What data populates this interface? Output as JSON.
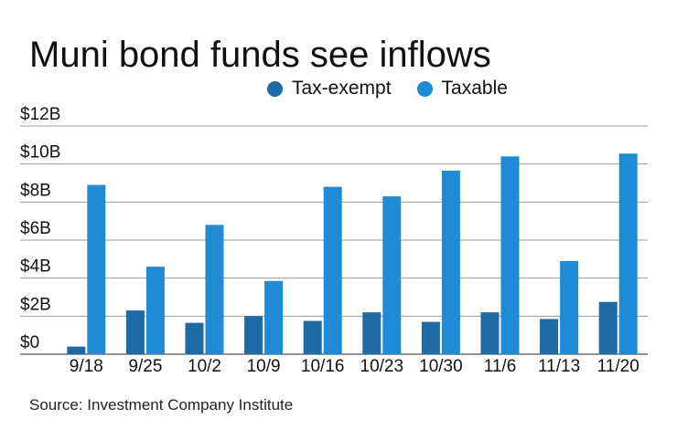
{
  "chart_data": {
    "type": "bar",
    "title": "Muni bond funds see inflows",
    "categories": [
      "9/18",
      "9/25",
      "10/2",
      "10/9",
      "10/16",
      "10/23",
      "10/30",
      "11/6",
      "11/13",
      "11/20"
    ],
    "series": [
      {
        "name": "Tax-exempt",
        "color": "#1d6aa5",
        "values": [
          0.4,
          2.3,
          1.65,
          2.0,
          1.75,
          2.2,
          1.7,
          2.2,
          1.85,
          2.75
        ]
      },
      {
        "name": "Taxable",
        "color": "#1f8ad6",
        "values": [
          8.9,
          4.6,
          6.8,
          3.85,
          8.8,
          8.3,
          9.65,
          10.4,
          4.9,
          10.55
        ]
      }
    ],
    "y_ticks": [
      "$0",
      "$2B",
      "$4B",
      "$6B",
      "$8B",
      "$10B",
      "$12B"
    ],
    "y_tick_values": [
      0,
      2,
      4,
      6,
      8,
      10,
      12
    ],
    "ylim": [
      0,
      12
    ],
    "grid": true,
    "legend": "top",
    "source": "Source: Investment Company Institute"
  }
}
